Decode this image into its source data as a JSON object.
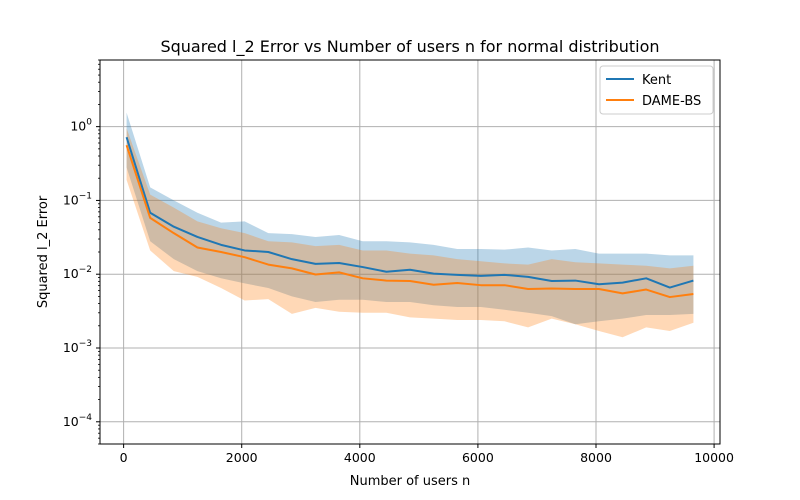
{
  "chart_data": {
    "type": "line",
    "title": "Squared l_2 Error vs Number of users n for normal distribution",
    "xlabel": "Number of users n",
    "ylabel": "Squared l_2 Error",
    "xlim": [
      -400,
      10100
    ],
    "ylim": [
      5e-05,
      8
    ],
    "yscale": "log",
    "grid": true,
    "legend_position": "top-right",
    "x_ticks": [
      {
        "value": 0,
        "label": "0"
      },
      {
        "value": 2000,
        "label": "2000"
      },
      {
        "value": 4000,
        "label": "4000"
      },
      {
        "value": 6000,
        "label": "6000"
      },
      {
        "value": 8000,
        "label": "8000"
      },
      {
        "value": 10000,
        "label": "10000"
      }
    ],
    "y_ticks": [
      {
        "value": 0.0001,
        "base": "10",
        "exp": "−4"
      },
      {
        "value": 0.001,
        "base": "10",
        "exp": "−3"
      },
      {
        "value": 0.01,
        "base": "10",
        "exp": "−2"
      },
      {
        "value": 0.1,
        "base": "10",
        "exp": "−1"
      },
      {
        "value": 1,
        "base": "10",
        "exp": "0"
      }
    ],
    "x": [
      50,
      450,
      850,
      1250,
      1650,
      2050,
      2450,
      2850,
      3250,
      3650,
      4050,
      4450,
      4850,
      5250,
      5650,
      6050,
      6450,
      6850,
      7250,
      7650,
      8050,
      8450,
      8850,
      9250,
      9650
    ],
    "series": [
      {
        "name": "Kent",
        "color": "#1f77b4",
        "band_color": "#1f77b4",
        "values": [
          0.72,
          0.068,
          0.044,
          0.032,
          0.025,
          0.021,
          0.02,
          0.016,
          0.0138,
          0.0142,
          0.0125,
          0.0108,
          0.0115,
          0.0102,
          0.0098,
          0.0095,
          0.0098,
          0.0092,
          0.0081,
          0.0082,
          0.0073,
          0.0077,
          0.0088,
          0.0066,
          0.0082
        ],
        "upper": [
          1.55,
          0.15,
          0.1,
          0.068,
          0.05,
          0.052,
          0.036,
          0.035,
          0.032,
          0.034,
          0.028,
          0.028,
          0.027,
          0.025,
          0.022,
          0.022,
          0.0215,
          0.023,
          0.021,
          0.022,
          0.019,
          0.019,
          0.019,
          0.018,
          0.018
        ],
        "lower": [
          0.28,
          0.028,
          0.016,
          0.011,
          0.0088,
          0.0075,
          0.0065,
          0.005,
          0.0042,
          0.0045,
          0.0045,
          0.0042,
          0.0042,
          0.0038,
          0.0036,
          0.0036,
          0.0033,
          0.003,
          0.0027,
          0.0021,
          0.0023,
          0.0025,
          0.0028,
          0.0028,
          0.0029
        ]
      },
      {
        "name": "DAME-BS",
        "color": "#ff7f0e",
        "band_color": "#ff7f0e",
        "values": [
          0.56,
          0.058,
          0.036,
          0.023,
          0.02,
          0.017,
          0.0135,
          0.012,
          0.0099,
          0.0106,
          0.0088,
          0.0082,
          0.0081,
          0.0072,
          0.0076,
          0.0071,
          0.0071,
          0.0063,
          0.0064,
          0.0063,
          0.0063,
          0.0055,
          0.0062,
          0.0049,
          0.0054
        ],
        "upper": [
          0.95,
          0.12,
          0.08,
          0.052,
          0.042,
          0.036,
          0.028,
          0.027,
          0.024,
          0.025,
          0.021,
          0.021,
          0.019,
          0.018,
          0.016,
          0.015,
          0.014,
          0.0135,
          0.016,
          0.0145,
          0.014,
          0.0135,
          0.013,
          0.012,
          0.013
        ],
        "lower": [
          0.19,
          0.021,
          0.011,
          0.0092,
          0.0065,
          0.0044,
          0.0046,
          0.0029,
          0.0035,
          0.0031,
          0.003,
          0.003,
          0.0026,
          0.0025,
          0.0024,
          0.0024,
          0.0023,
          0.0019,
          0.0025,
          0.0021,
          0.0017,
          0.0014,
          0.0019,
          0.0017,
          0.0022
        ]
      }
    ]
  }
}
